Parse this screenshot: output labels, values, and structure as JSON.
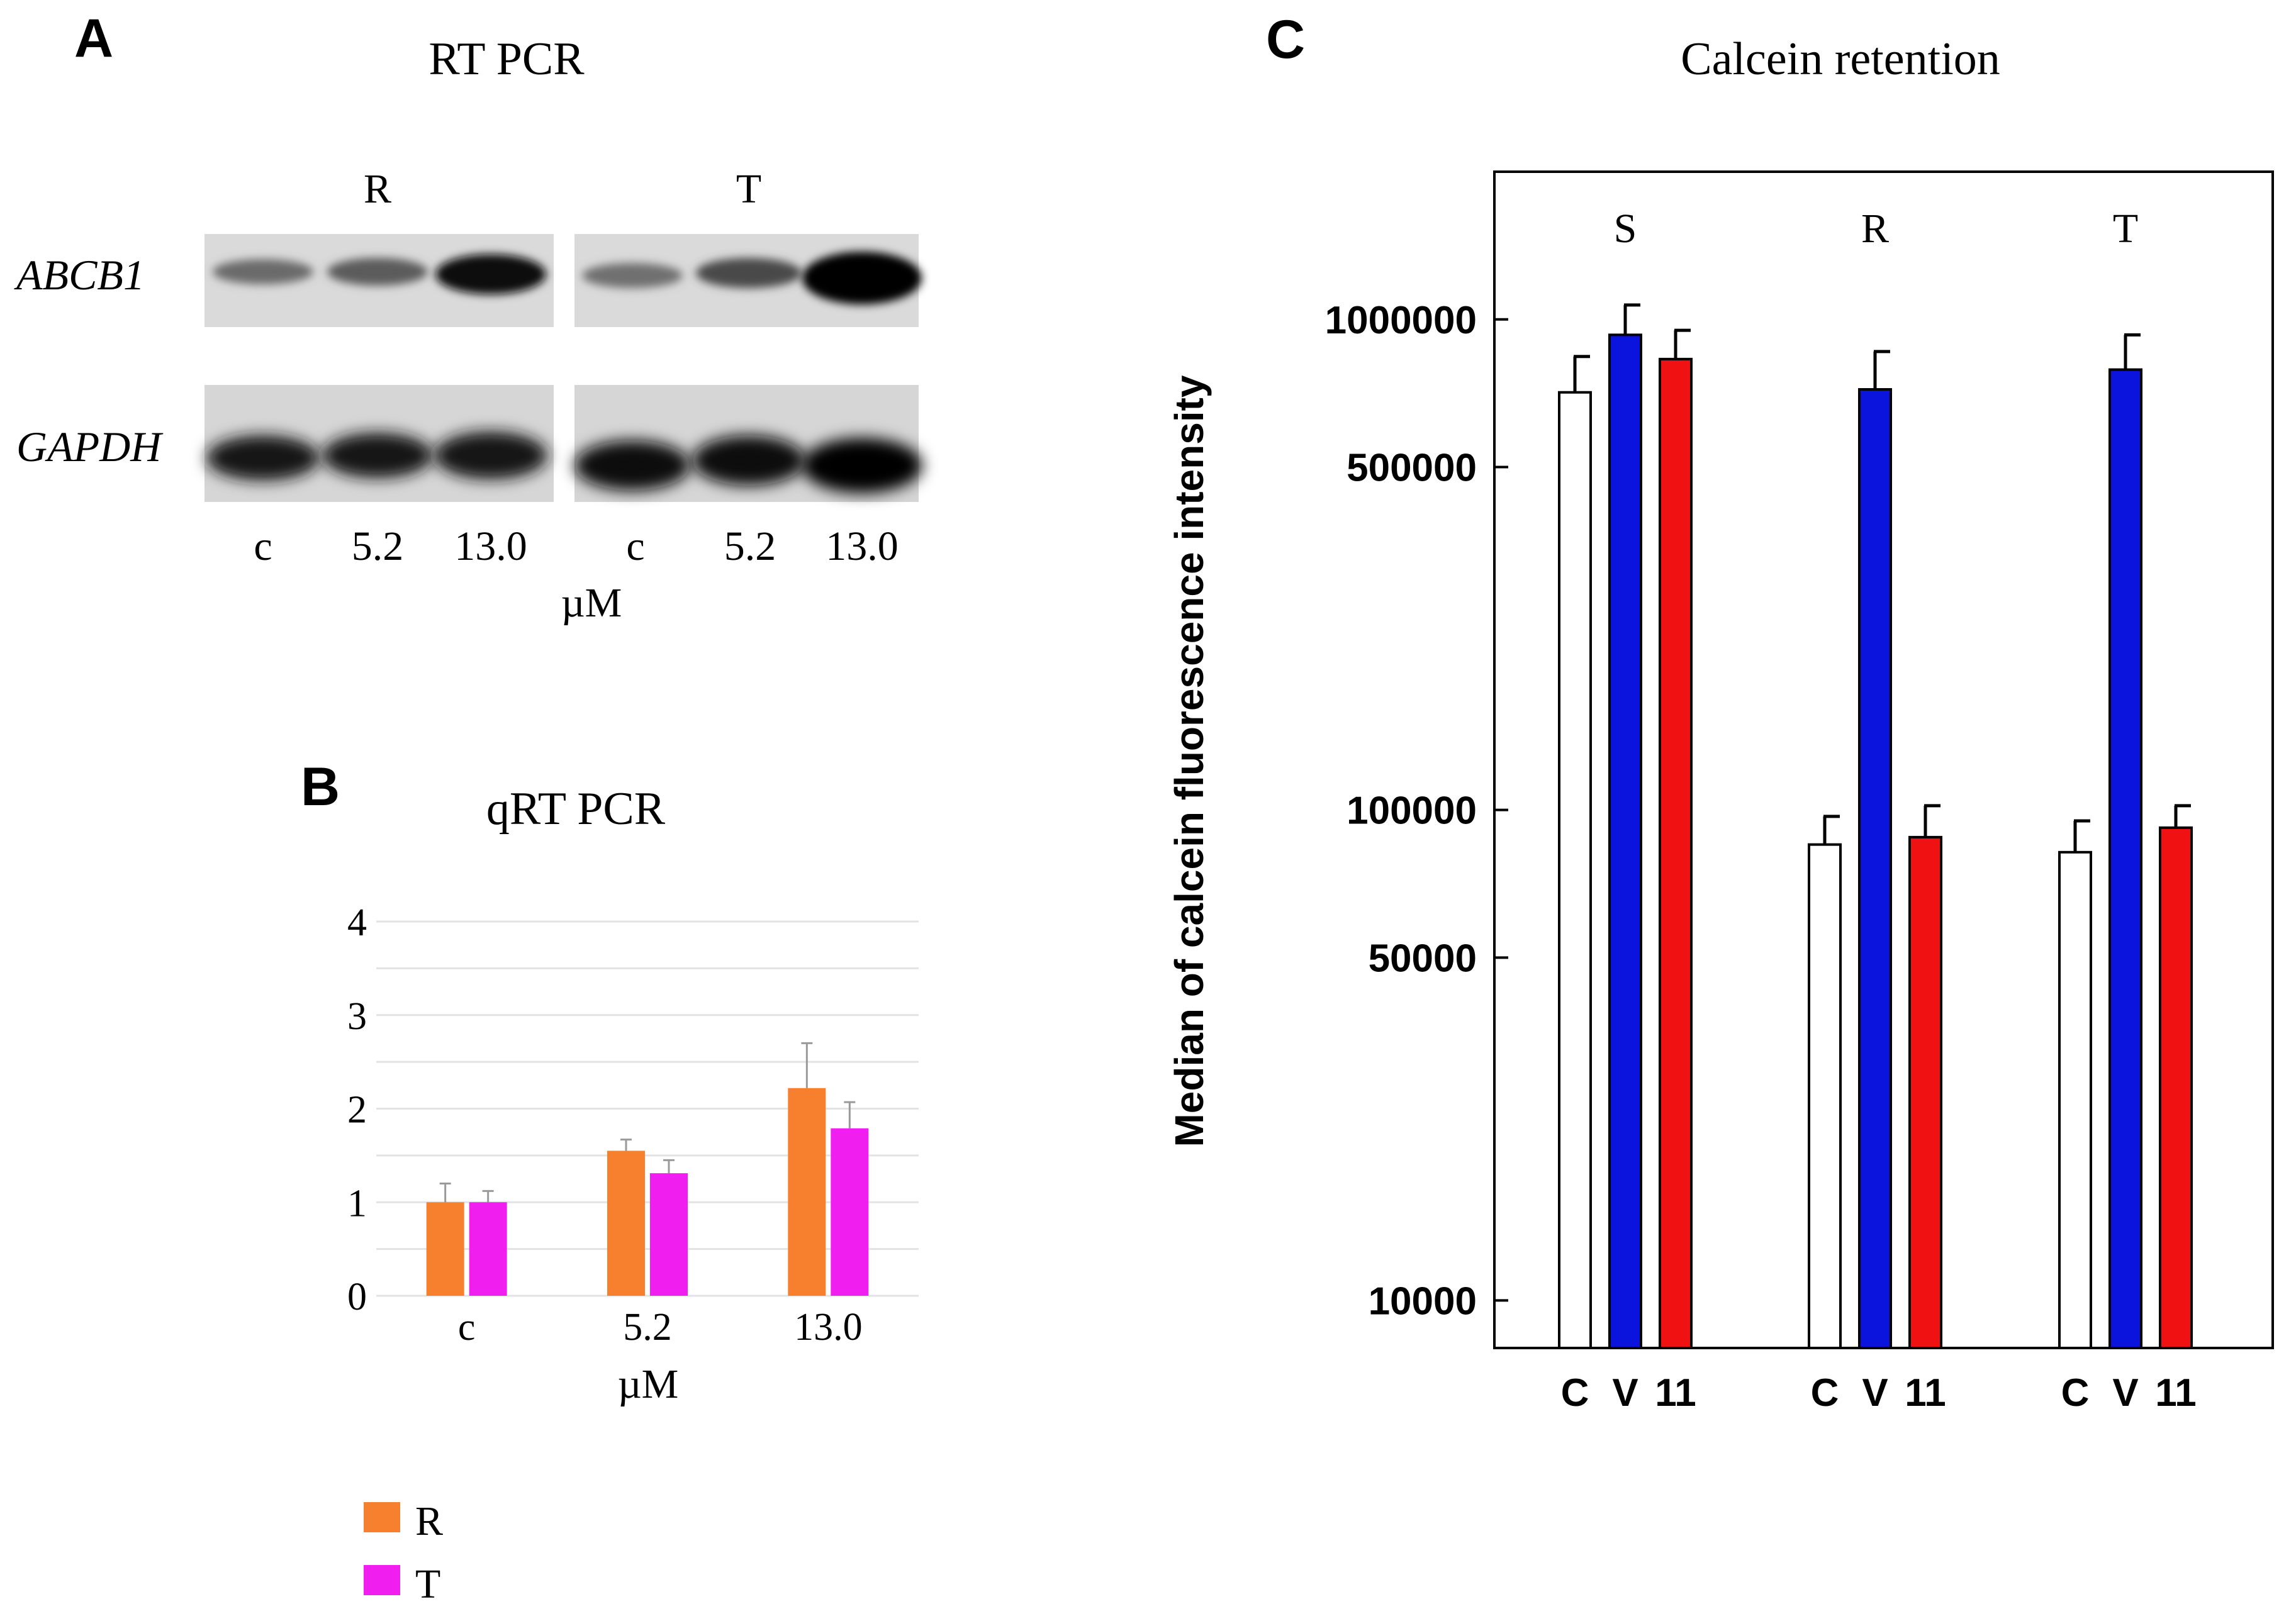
{
  "panels": {
    "A": {
      "letter": "A",
      "title": "RT PCR",
      "group_labels": [
        "R",
        "T"
      ],
      "gene_labels": [
        "ABCB1",
        "GAPDH"
      ],
      "lane_labels": [
        "c",
        "5.2",
        "13.0",
        "c",
        "5.2",
        "13.0"
      ],
      "unit": "µM"
    },
    "B": {
      "letter": "B"
    },
    "C": {
      "letter": "C"
    }
  },
  "chart_data": [
    {
      "id": "qrt_pcr",
      "type": "bar",
      "title": "qRT PCR",
      "xlabel": "µM",
      "ylabel": "",
      "categories": [
        "c",
        "5.2",
        "13.0"
      ],
      "series": [
        {
          "name": "R",
          "color": "#f6802e",
          "values": [
            1.0,
            1.55,
            2.22
          ],
          "errors": [
            0.2,
            0.12,
            0.48
          ]
        },
        {
          "name": "T",
          "color": "#f01ff0",
          "values": [
            1.0,
            1.31,
            1.79
          ],
          "errors": [
            0.12,
            0.14,
            0.28
          ]
        }
      ],
      "ylim": [
        0,
        4
      ],
      "yticks": [
        0,
        1,
        2,
        3,
        4
      ],
      "ytick_labels": [
        "0",
        "1",
        "2",
        "3",
        "4"
      ],
      "grid": true,
      "legend": "bottom-left"
    },
    {
      "id": "calcein_retention",
      "type": "bar",
      "title": "Calcein retention",
      "ylabel": "Median of calcein fluorescence intensity",
      "xlabel": "",
      "yscale": "log",
      "ylim": [
        8000,
        2000000
      ],
      "yticks": [
        10000,
        50000,
        100000,
        500000,
        1000000
      ],
      "ytick_labels": [
        "10000",
        "50000",
        "100000",
        "500000",
        "1000000"
      ],
      "groups": [
        "S",
        "R",
        "T"
      ],
      "categories": [
        "C",
        "V",
        "11"
      ],
      "colors": {
        "C": "#ffffff",
        "V": "#0a14dc",
        "11": "#f01212"
      },
      "series": [
        {
          "group": "S",
          "values": [
            710000,
            930000,
            830000
          ],
          "errors": [
            130000,
            140000,
            120000
          ]
        },
        {
          "group": "R",
          "values": [
            85000,
            720000,
            88000
          ],
          "errors": [
            12000,
            140000,
            14000
          ]
        },
        {
          "group": "T",
          "values": [
            82000,
            790000,
            92000
          ],
          "errors": [
            13000,
            140000,
            10000
          ]
        }
      ],
      "grid": false
    }
  ]
}
